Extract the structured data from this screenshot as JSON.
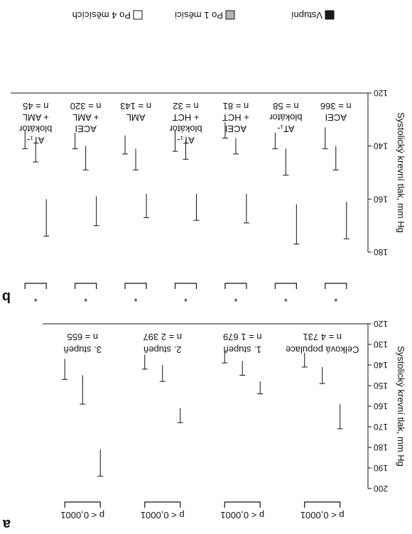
{
  "legend": [
    {
      "label": "Vstupní",
      "color": "#1a1a1a"
    },
    {
      "label": "Po 1 měsíci",
      "color": "#b3b3b3"
    },
    {
      "label": "Po 4 měsících",
      "color": "#ffffff"
    }
  ],
  "chart_data": [
    {
      "type": "bar",
      "panel_label": "b",
      "ylabel": "Systolický krevní tlak, mm Hg",
      "ylim": [
        120,
        180
      ],
      "yticks": [
        "120",
        "140",
        "160",
        "180"
      ],
      "categories": [
        [
          "ACEI",
          "n = 366"
        ],
        [
          "AT₁-",
          "blokátor",
          "n = 58"
        ],
        [
          "ACEI",
          "+ HCT",
          "n = 81"
        ],
        [
          "AT₁-",
          "blokátor",
          "+ HCT",
          "n = 32"
        ],
        [
          "AML",
          "n = 143"
        ],
        [
          "ACEI",
          "+ AML",
          "n = 320"
        ],
        [
          "AT₁-",
          "blokátor",
          "+ AML",
          "n = 45"
        ]
      ],
      "series": [
        {
          "name": "Vstupní",
          "values": [
            161,
            162,
            158,
            158,
            158,
            159,
            160
          ],
          "error": [
            14,
            15,
            11,
            10,
            9,
            11,
            14
          ]
        },
        {
          "name": "Po 1 měsíci",
          "values": [
            140,
            141,
            137,
            138,
            141,
            140,
            139
          ],
          "error": [
            9,
            10,
            6,
            7,
            8,
            9,
            7
          ]
        },
        {
          "name": "Po 4 měsících",
          "values": [
            133,
            135,
            131,
            134,
            136,
            135,
            134
          ],
          "error": [
            8,
            6,
            6,
            8,
            7,
            6,
            7
          ]
        }
      ],
      "significance": [
        "*",
        "*",
        "*",
        "*",
        "*",
        "*",
        "*"
      ]
    },
    {
      "type": "bar",
      "panel_label": "a",
      "ylabel": "Systolický krevní tlak, mm Hg",
      "ylim": [
        120,
        200
      ],
      "yticks": [
        "120",
        "130",
        "140",
        "150",
        "160",
        "170",
        "180",
        "190",
        "200"
      ],
      "categories": [
        [
          "Celková populace",
          "n = 4 731"
        ],
        [
          "1. stupeň",
          "n = 1 679"
        ],
        [
          "2. stupeň",
          "n = 2 397"
        ],
        [
          "3. stupeň",
          "n = 655"
        ]
      ],
      "series": [
        {
          "name": "Vstupní",
          "values": [
            159,
            148,
            161,
            181
          ],
          "error": [
            12,
            6,
            7,
            13
          ]
        },
        {
          "name": "Po 1 měsíci",
          "values": [
            141,
            138,
            140,
            145
          ],
          "error": [
            8,
            7,
            8,
            14
          ]
        },
        {
          "name": "Po 4 měsících",
          "values": [
            134,
            133,
            135,
            137
          ],
          "error": [
            7,
            6,
            7,
            10
          ]
        }
      ],
      "significance": [
        "p < 0,0001",
        "p < 0,0001",
        "p < 0,0001",
        "p < 0,0001"
      ]
    }
  ]
}
